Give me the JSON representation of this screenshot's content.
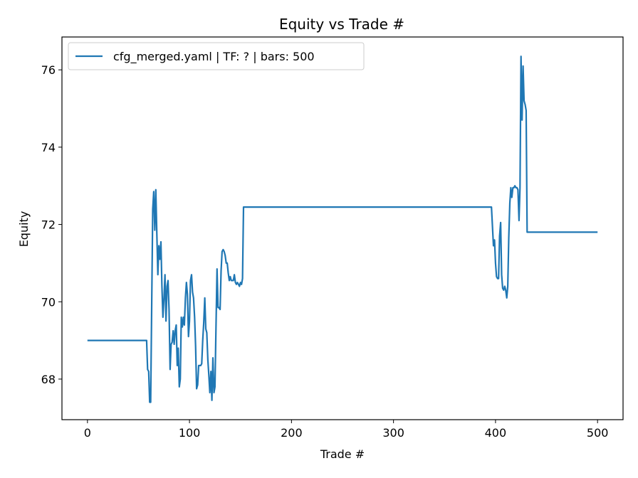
{
  "chart_data": {
    "type": "line",
    "title": "Equity vs Trade #",
    "xlabel": "Trade #",
    "ylabel": "Equity",
    "xlim": [
      -25,
      525
    ],
    "ylim": [
      66.95,
      76.85
    ],
    "xticks": [
      0,
      100,
      200,
      300,
      400,
      500
    ],
    "yticks": [
      68,
      70,
      72,
      74,
      76
    ],
    "grid": false,
    "legend_position": "top-left",
    "series": [
      {
        "name": "cfg_merged.yaml | TF: ? | bars: 500",
        "color": "#1f77b4",
        "points": [
          [
            0,
            69.0
          ],
          [
            58,
            69.0
          ],
          [
            59,
            68.25
          ],
          [
            60,
            68.2
          ],
          [
            61,
            67.4
          ],
          [
            62,
            67.4
          ],
          [
            63,
            70.0
          ],
          [
            64,
            72.4
          ],
          [
            65,
            72.85
          ],
          [
            66,
            71.85
          ],
          [
            67,
            72.9
          ],
          [
            68,
            71.8
          ],
          [
            69,
            70.7
          ],
          [
            70,
            71.45
          ],
          [
            71,
            71.1
          ],
          [
            72,
            71.55
          ],
          [
            73,
            70.4
          ],
          [
            74,
            69.6
          ],
          [
            75,
            70.1
          ],
          [
            76,
            70.7
          ],
          [
            77,
            69.5
          ],
          [
            78,
            70.4
          ],
          [
            79,
            70.55
          ],
          [
            80,
            69.8
          ],
          [
            81,
            68.25
          ],
          [
            82,
            68.9
          ],
          [
            83,
            68.95
          ],
          [
            84,
            69.25
          ],
          [
            85,
            68.9
          ],
          [
            86,
            69.25
          ],
          [
            87,
            69.4
          ],
          [
            88,
            68.35
          ],
          [
            89,
            68.8
          ],
          [
            90,
            67.8
          ],
          [
            91,
            68.0
          ],
          [
            92,
            69.6
          ],
          [
            93,
            69.35
          ],
          [
            94,
            69.6
          ],
          [
            95,
            69.4
          ],
          [
            96,
            70.1
          ],
          [
            97,
            70.5
          ],
          [
            98,
            70.2
          ],
          [
            99,
            69.1
          ],
          [
            100,
            69.5
          ],
          [
            101,
            70.55
          ],
          [
            102,
            70.7
          ],
          [
            103,
            70.25
          ],
          [
            104,
            70.1
          ],
          [
            105,
            69.6
          ],
          [
            106,
            68.85
          ],
          [
            107,
            67.75
          ],
          [
            108,
            67.85
          ],
          [
            109,
            68.35
          ],
          [
            110,
            68.35
          ],
          [
            111,
            68.35
          ],
          [
            112,
            68.4
          ],
          [
            113,
            69.0
          ],
          [
            114,
            69.45
          ],
          [
            115,
            70.1
          ],
          [
            116,
            69.3
          ],
          [
            117,
            69.2
          ],
          [
            118,
            68.5
          ],
          [
            119,
            68.1
          ],
          [
            120,
            67.65
          ],
          [
            121,
            68.2
          ],
          [
            122,
            67.45
          ],
          [
            123,
            68.55
          ],
          [
            124,
            67.65
          ],
          [
            125,
            67.8
          ],
          [
            126,
            69.3
          ],
          [
            127,
            70.85
          ],
          [
            128,
            69.85
          ],
          [
            129,
            69.85
          ],
          [
            130,
            69.8
          ],
          [
            131,
            70.8
          ],
          [
            132,
            71.3
          ],
          [
            133,
            71.35
          ],
          [
            134,
            71.3
          ],
          [
            135,
            71.2
          ],
          [
            136,
            71.0
          ],
          [
            137,
            71.0
          ],
          [
            138,
            70.75
          ],
          [
            139,
            70.55
          ],
          [
            140,
            70.65
          ],
          [
            141,
            70.55
          ],
          [
            142,
            70.55
          ],
          [
            143,
            70.55
          ],
          [
            144,
            70.7
          ],
          [
            145,
            70.5
          ],
          [
            146,
            70.45
          ],
          [
            147,
            70.5
          ],
          [
            148,
            70.45
          ],
          [
            149,
            70.4
          ],
          [
            150,
            70.5
          ],
          [
            151,
            70.45
          ],
          [
            152,
            70.6
          ],
          [
            153,
            72.45
          ],
          [
            154,
            72.45
          ],
          [
            396,
            72.45
          ],
          [
            397,
            71.95
          ],
          [
            398,
            71.45
          ],
          [
            399,
            71.6
          ],
          [
            400,
            71.0
          ],
          [
            401,
            70.65
          ],
          [
            402,
            70.6
          ],
          [
            403,
            70.6
          ],
          [
            404,
            71.7
          ],
          [
            405,
            72.05
          ],
          [
            406,
            70.7
          ],
          [
            407,
            70.35
          ],
          [
            408,
            70.3
          ],
          [
            409,
            70.4
          ],
          [
            410,
            70.3
          ],
          [
            411,
            70.1
          ],
          [
            412,
            70.4
          ],
          [
            413,
            71.65
          ],
          [
            414,
            72.55
          ],
          [
            415,
            72.95
          ],
          [
            416,
            72.7
          ],
          [
            417,
            72.95
          ],
          [
            418,
            72.95
          ],
          [
            419,
            73.0
          ],
          [
            420,
            72.95
          ],
          [
            421,
            72.95
          ],
          [
            422,
            72.9
          ],
          [
            423,
            72.1
          ],
          [
            424,
            72.95
          ],
          [
            425,
            76.35
          ],
          [
            426,
            74.7
          ],
          [
            427,
            76.1
          ],
          [
            428,
            75.2
          ],
          [
            429,
            75.1
          ],
          [
            430,
            74.95
          ],
          [
            431,
            71.8
          ],
          [
            500,
            71.8
          ]
        ]
      }
    ]
  }
}
